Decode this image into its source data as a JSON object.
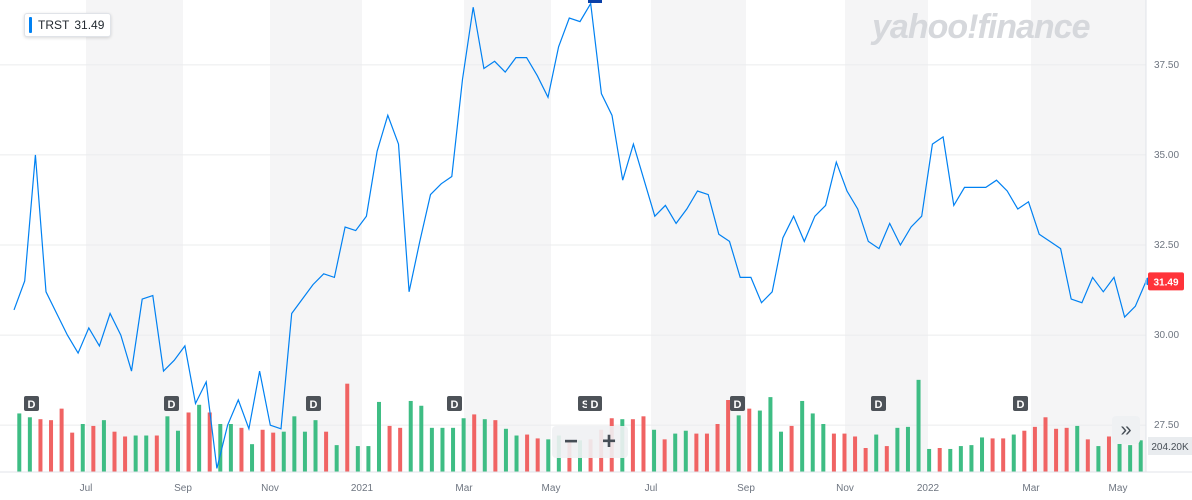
{
  "ticker": {
    "symbol": "TRST",
    "price": "31.49"
  },
  "logo_text": "yahoo!finance",
  "colors": {
    "line": "#0081f2",
    "up": "#3ebd84",
    "down": "#f06363",
    "band": "#f5f5f6",
    "price_tag": "#ff333a",
    "dividend": "#4d5258"
  },
  "controls": {
    "zoom_out": "−",
    "zoom_in": "+",
    "scroll_icon": "»"
  },
  "chart_data": {
    "type": "line",
    "x_ticks": [
      "Jul",
      "Sep",
      "Nov",
      "2021",
      "Mar",
      "May",
      "Jul",
      "Sep",
      "Nov",
      "2022",
      "Mar",
      "May"
    ],
    "y_ticks": [
      "27.50",
      "30.00",
      "32.50",
      "35.00",
      "37.50"
    ],
    "ylim": [
      26.2,
      39.3
    ],
    "current_price": 31.49,
    "volume_label": "204.20K",
    "dividend_markers": [
      "D",
      "D",
      "D",
      "D",
      "S",
      "D",
      "D",
      "D",
      "D"
    ],
    "price": [
      30.7,
      31.5,
      35.0,
      31.2,
      30.6,
      30.0,
      29.5,
      30.2,
      29.7,
      30.6,
      30.0,
      29.0,
      31.0,
      31.1,
      29.0,
      29.3,
      29.7,
      28.1,
      28.7,
      26.3,
      27.5,
      28.2,
      27.4,
      29.0,
      27.5,
      27.4,
      30.6,
      31.0,
      31.4,
      31.7,
      31.6,
      33.0,
      32.9,
      33.3,
      35.1,
      36.1,
      35.3,
      31.2,
      32.6,
      33.9,
      34.2,
      34.4,
      37.1,
      39.1,
      37.4,
      37.6,
      37.3,
      37.7,
      37.7,
      37.2,
      36.6,
      38.0,
      38.8,
      38.7,
      39.2,
      36.7,
      36.1,
      34.3,
      35.3,
      34.3,
      33.3,
      33.6,
      33.1,
      33.5,
      34.0,
      33.9,
      32.8,
      32.6,
      31.6,
      31.6,
      30.9,
      31.2,
      32.7,
      33.3,
      32.6,
      33.3,
      33.6,
      34.8,
      34.0,
      33.5,
      32.6,
      32.4,
      33.1,
      32.5,
      33.0,
      33.3,
      35.3,
      35.5,
      33.6,
      34.1,
      34.1,
      34.1,
      34.3,
      34.0,
      33.5,
      33.7,
      32.8,
      32.6,
      32.4,
      31.0,
      30.9,
      31.6,
      31.2,
      31.6,
      30.5,
      30.8,
      31.49
    ],
    "volume": [
      0.61,
      0.57,
      0.55,
      0.54,
      0.66,
      0.41,
      0.5,
      0.48,
      0.54,
      0.42,
      0.37,
      0.38,
      0.38,
      0.38,
      0.58,
      0.43,
      0.62,
      0.7,
      0.62,
      0.5,
      0.5,
      0.46,
      0.29,
      0.44,
      0.41,
      0.42,
      0.58,
      0.42,
      0.54,
      0.42,
      0.28,
      0.92,
      0.27,
      0.27,
      0.73,
      0.48,
      0.46,
      0.74,
      0.69,
      0.46,
      0.46,
      0.46,
      0.56,
      0.6,
      0.55,
      0.54,
      0.45,
      0.38,
      0.39,
      0.35,
      0.34,
      0.38,
      0.33,
      0.33,
      0.34,
      0.44,
      0.56,
      0.55,
      0.55,
      0.58,
      0.44,
      0.34,
      0.4,
      0.43,
      0.4,
      0.4,
      0.5,
      0.75,
      0.59,
      0.66,
      0.64,
      0.78,
      0.42,
      0.48,
      0.74,
      0.61,
      0.5,
      0.4,
      0.4,
      0.37,
      0.25,
      0.39,
      0.27,
      0.46,
      0.47,
      0.96,
      0.24,
      0.25,
      0.24,
      0.27,
      0.28,
      0.36,
      0.35,
      0.35,
      0.39,
      0.43,
      0.47,
      0.57,
      0.45,
      0.46,
      0.48,
      0.34,
      0.27,
      0.37,
      0.41,
      0.28,
      0.33
    ]
  }
}
